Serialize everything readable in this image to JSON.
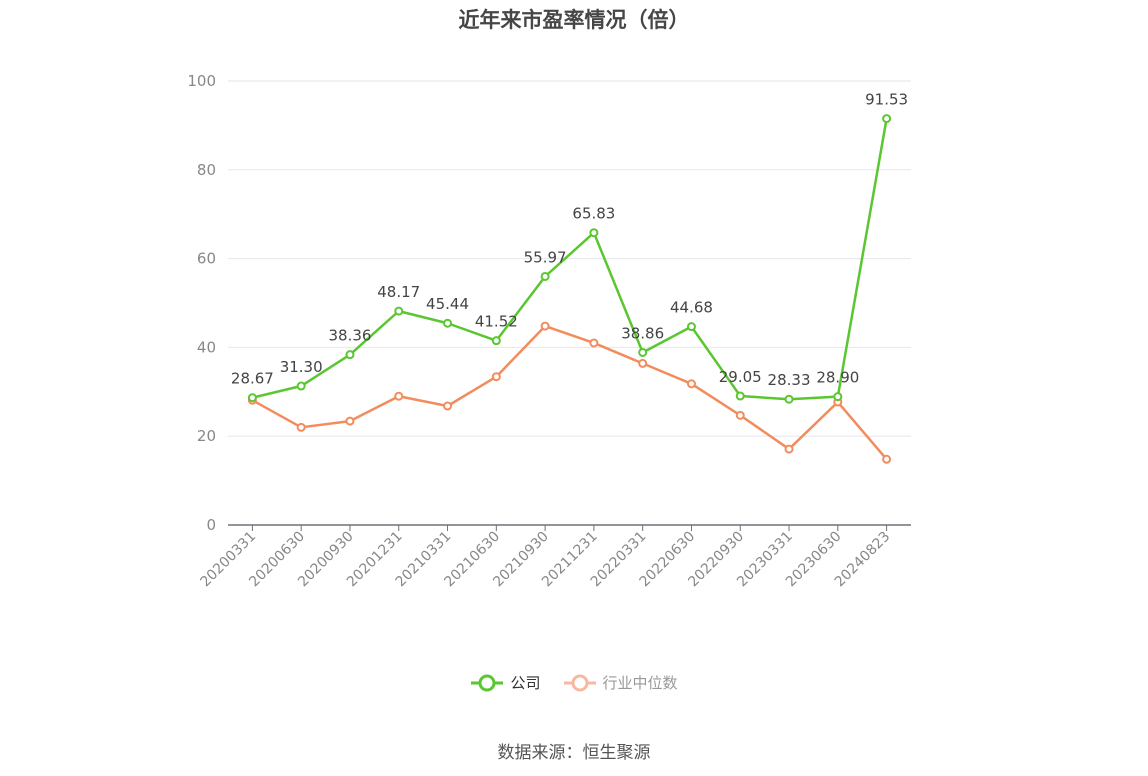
{
  "title": "近年来市盈率情况（倍）",
  "source": "数据来源：恒生聚源",
  "colors": {
    "company": "#5ac630",
    "industry": "#f28c5d",
    "industry_legend": "#f6b8a0",
    "grid": "#e6e6ee",
    "axis": "#6e7079"
  },
  "chart_data": {
    "type": "line",
    "title": "近年来市盈率情况（倍）",
    "categories": [
      "20200331",
      "20200630",
      "20200930",
      "20201231",
      "20210331",
      "20210630",
      "20210930",
      "20211231",
      "20220331",
      "20220630",
      "20220930",
      "20230331",
      "20230630",
      "20240823"
    ],
    "ylim": [
      0,
      100
    ],
    "yticks": [
      0,
      20,
      40,
      60,
      80,
      100
    ],
    "grid": true,
    "legend_position": "bottom",
    "series": [
      {
        "name": "公司",
        "color": "#5ac630",
        "labels": true,
        "values": [
          28.67,
          31.3,
          38.36,
          48.17,
          45.44,
          41.52,
          55.97,
          65.83,
          38.86,
          44.68,
          29.05,
          28.33,
          28.9,
          91.53
        ]
      },
      {
        "name": "行业中位数",
        "color": "#f28c5d",
        "labels": false,
        "values": [
          28.1,
          22.0,
          23.4,
          29.0,
          26.8,
          33.4,
          44.8,
          41.0,
          36.4,
          31.8,
          24.7,
          17.1,
          27.7,
          14.8
        ]
      }
    ]
  }
}
